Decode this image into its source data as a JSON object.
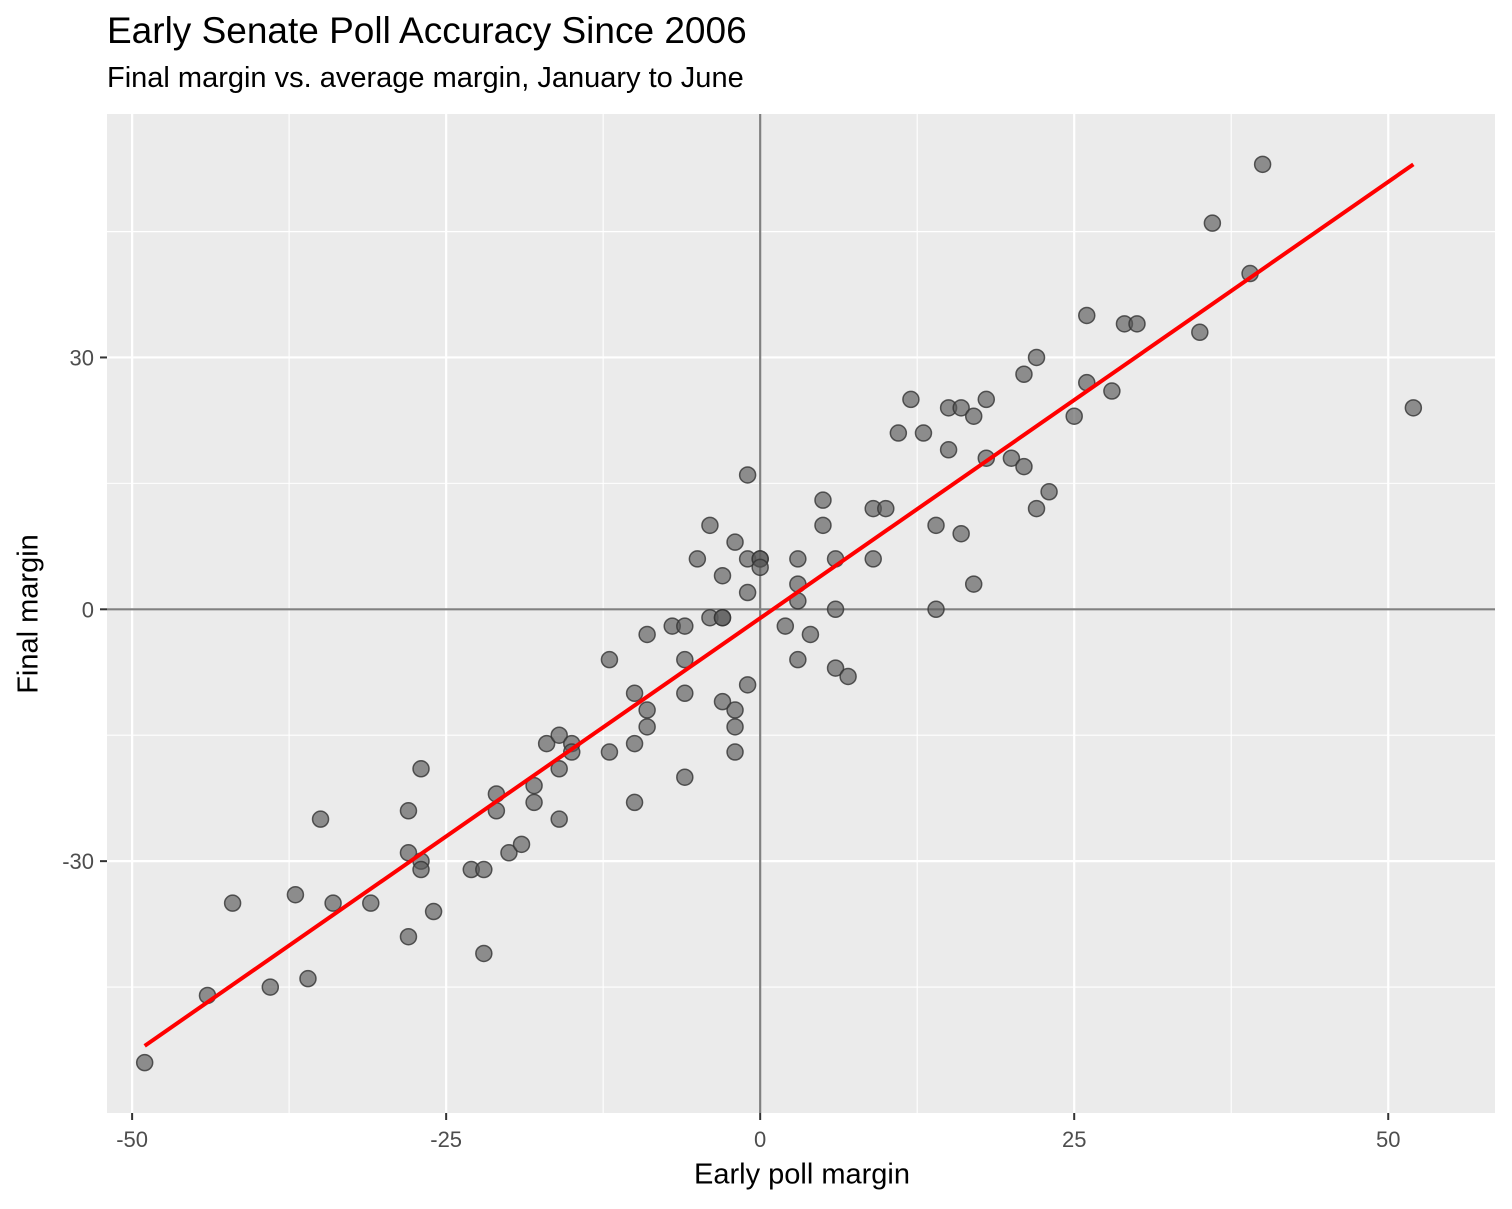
{
  "chart_data": {
    "type": "scatter",
    "title": "Early Senate Poll Accuracy Since 2006",
    "subtitle": "Final margin vs. average margin, January to June",
    "xlabel": "Early poll margin",
    "ylabel": "Final margin",
    "xlim": [
      -52,
      58.5
    ],
    "ylim": [
      -60,
      59
    ],
    "x_ticks": [
      -50,
      -25,
      0,
      25,
      50
    ],
    "x_tick_labels": [
      "-50",
      "-25",
      "0",
      "25",
      "50"
    ],
    "y_ticks": [
      -30,
      0,
      30
    ],
    "y_tick_labels": [
      "-30",
      "0",
      "30"
    ],
    "grid": true,
    "reference_lines": {
      "x": 0,
      "y": 0
    },
    "colors": {
      "panel": "#ebebeb",
      "grid": "#ffffff",
      "points": "#595959",
      "fit_line": "#ff0000",
      "reference": "#808080"
    },
    "fit_line": {
      "x": [
        -49,
        52
      ],
      "y": [
        -52,
        53
      ]
    },
    "points": [
      {
        "x": -49,
        "y": -54
      },
      {
        "x": -44,
        "y": -46
      },
      {
        "x": -42,
        "y": -35
      },
      {
        "x": -39,
        "y": -45
      },
      {
        "x": -37,
        "y": -34
      },
      {
        "x": -36,
        "y": -44
      },
      {
        "x": -35,
        "y": -25
      },
      {
        "x": -34,
        "y": -35
      },
      {
        "x": -31,
        "y": -35
      },
      {
        "x": -28,
        "y": -24
      },
      {
        "x": -28,
        "y": -29
      },
      {
        "x": -28,
        "y": -39
      },
      {
        "x": -27,
        "y": -19
      },
      {
        "x": -27,
        "y": -30
      },
      {
        "x": -27,
        "y": -31
      },
      {
        "x": -26,
        "y": -36
      },
      {
        "x": -23,
        "y": -31
      },
      {
        "x": -22,
        "y": -31
      },
      {
        "x": -22,
        "y": -41
      },
      {
        "x": -21,
        "y": -22
      },
      {
        "x": -21,
        "y": -24
      },
      {
        "x": -20,
        "y": -29
      },
      {
        "x": -19,
        "y": -28
      },
      {
        "x": -18,
        "y": -21
      },
      {
        "x": -18,
        "y": -23
      },
      {
        "x": -17,
        "y": -16
      },
      {
        "x": -16,
        "y": -15
      },
      {
        "x": -16,
        "y": -19
      },
      {
        "x": -16,
        "y": -25
      },
      {
        "x": -15,
        "y": -16
      },
      {
        "x": -15,
        "y": -17
      },
      {
        "x": -12,
        "y": -6
      },
      {
        "x": -12,
        "y": -17
      },
      {
        "x": -10,
        "y": -10
      },
      {
        "x": -10,
        "y": -16
      },
      {
        "x": -10,
        "y": -23
      },
      {
        "x": -9,
        "y": -3
      },
      {
        "x": -9,
        "y": -12
      },
      {
        "x": -9,
        "y": -14
      },
      {
        "x": -7,
        "y": -2
      },
      {
        "x": -6,
        "y": -2
      },
      {
        "x": -6,
        "y": -6
      },
      {
        "x": -6,
        "y": -10
      },
      {
        "x": -6,
        "y": -20
      },
      {
        "x": -5,
        "y": 6
      },
      {
        "x": -4,
        "y": 10
      },
      {
        "x": -4,
        "y": -1
      },
      {
        "x": -3,
        "y": 4
      },
      {
        "x": -3,
        "y": -1
      },
      {
        "x": -3,
        "y": -1
      },
      {
        "x": -3,
        "y": -11
      },
      {
        "x": -2,
        "y": 8
      },
      {
        "x": -2,
        "y": -12
      },
      {
        "x": -2,
        "y": -14
      },
      {
        "x": -2,
        "y": -17
      },
      {
        "x": -1,
        "y": 16
      },
      {
        "x": -1,
        "y": 6
      },
      {
        "x": -1,
        "y": 2
      },
      {
        "x": -1,
        "y": -9
      },
      {
        "x": 0,
        "y": 6
      },
      {
        "x": 0,
        "y": 6
      },
      {
        "x": 0,
        "y": 5
      },
      {
        "x": 2,
        "y": -2
      },
      {
        "x": 3,
        "y": 6
      },
      {
        "x": 3,
        "y": 3
      },
      {
        "x": 3,
        "y": 1
      },
      {
        "x": 3,
        "y": -6
      },
      {
        "x": 4,
        "y": -3
      },
      {
        "x": 5,
        "y": 13
      },
      {
        "x": 5,
        "y": 10
      },
      {
        "x": 6,
        "y": 6
      },
      {
        "x": 6,
        "y": 0
      },
      {
        "x": 6,
        "y": -7
      },
      {
        "x": 7,
        "y": -8
      },
      {
        "x": 9,
        "y": 12
      },
      {
        "x": 9,
        "y": 6
      },
      {
        "x": 10,
        "y": 12
      },
      {
        "x": 11,
        "y": 21
      },
      {
        "x": 12,
        "y": 25
      },
      {
        "x": 13,
        "y": 21
      },
      {
        "x": 14,
        "y": 10
      },
      {
        "x": 14,
        "y": 0
      },
      {
        "x": 15,
        "y": 24
      },
      {
        "x": 15,
        "y": 19
      },
      {
        "x": 16,
        "y": 24
      },
      {
        "x": 16,
        "y": 9
      },
      {
        "x": 17,
        "y": 23
      },
      {
        "x": 17,
        "y": 3
      },
      {
        "x": 18,
        "y": 25
      },
      {
        "x": 18,
        "y": 18
      },
      {
        "x": 20,
        "y": 18
      },
      {
        "x": 21,
        "y": 28
      },
      {
        "x": 21,
        "y": 17
      },
      {
        "x": 22,
        "y": 30
      },
      {
        "x": 22,
        "y": 12
      },
      {
        "x": 23,
        "y": 14
      },
      {
        "x": 25,
        "y": 23
      },
      {
        "x": 26,
        "y": 35
      },
      {
        "x": 26,
        "y": 27
      },
      {
        "x": 28,
        "y": 26
      },
      {
        "x": 29,
        "y": 34
      },
      {
        "x": 30,
        "y": 34
      },
      {
        "x": 35,
        "y": 33
      },
      {
        "x": 36,
        "y": 46
      },
      {
        "x": 39,
        "y": 40
      },
      {
        "x": 40,
        "y": 53
      },
      {
        "x": 52,
        "y": 24
      }
    ]
  }
}
